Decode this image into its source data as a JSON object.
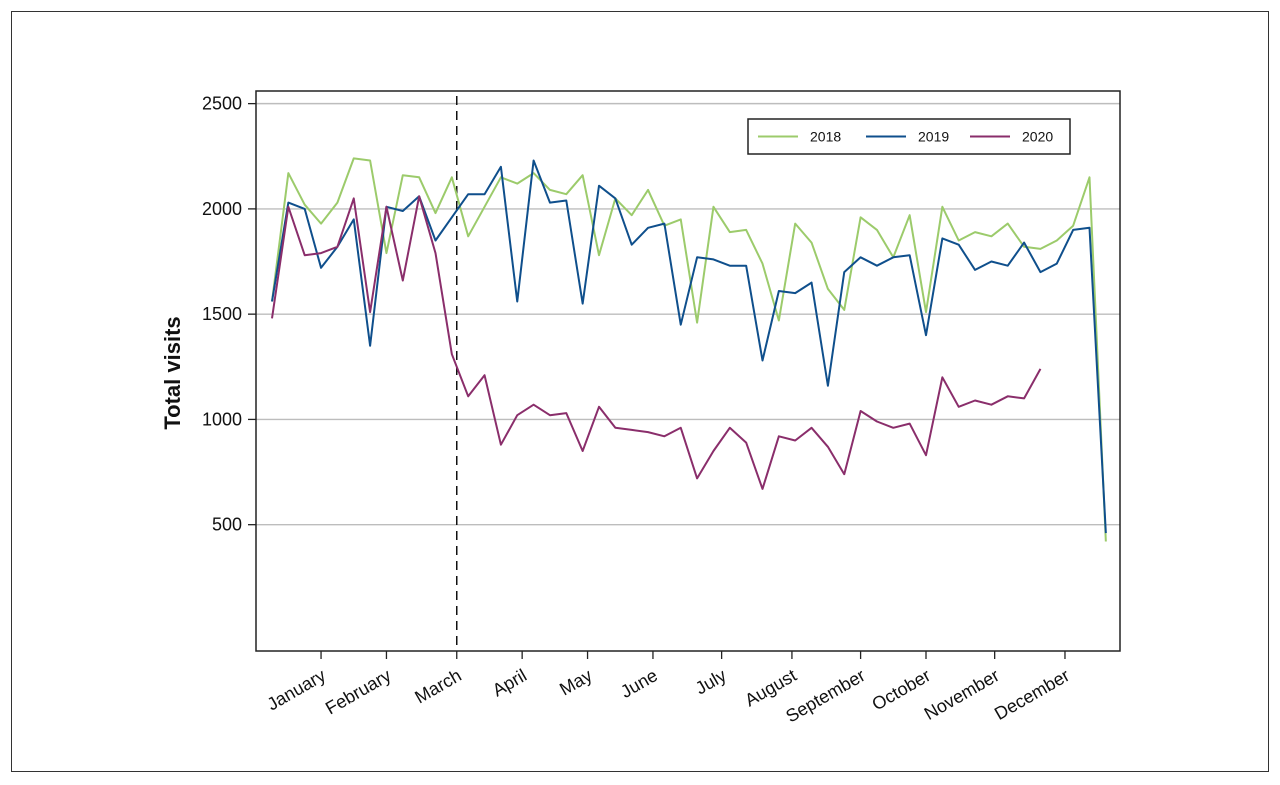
{
  "chart_data": {
    "type": "line",
    "ylabel": "Total visits",
    "xlabel": "",
    "ylim": [
      -100,
      2560
    ],
    "yticks": [
      500,
      1000,
      1500,
      2000,
      2500
    ],
    "ytick_labels": [
      "500",
      "1000",
      "1500",
      "2000",
      "2500"
    ],
    "grid": "horizontal",
    "x_weeks": 52,
    "months": [
      {
        "label": "January",
        "week": 3
      },
      {
        "label": "February",
        "week": 7
      },
      {
        "label": "March",
        "week": 11.3
      },
      {
        "label": "April",
        "week": 15.3
      },
      {
        "label": "May",
        "week": 19.3
      },
      {
        "label": "June",
        "week": 23.3
      },
      {
        "label": "July",
        "week": 27.5
      },
      {
        "label": "August",
        "week": 31.8
      },
      {
        "label": "September",
        "week": 36
      },
      {
        "label": "October",
        "week": 40
      },
      {
        "label": "November",
        "week": 44.2
      },
      {
        "label": "December",
        "week": 48.5
      }
    ],
    "reference_line_week": 11.3,
    "legend_placement": "top-right",
    "series": [
      {
        "name": "2018",
        "color": "#9ccb6b",
        "values": [
          1560,
          2170,
          2020,
          1930,
          2030,
          2240,
          2230,
          1790,
          2160,
          2150,
          1980,
          2150,
          1870,
          2010,
          2150,
          2120,
          2170,
          2090,
          2070,
          2160,
          1780,
          2050,
          1970,
          2090,
          1920,
          1950,
          1460,
          2010,
          1890,
          1900,
          1740,
          1470,
          1930,
          1840,
          1620,
          1520,
          1960,
          1900,
          1770,
          1970,
          1510,
          2010,
          1850,
          1890,
          1870,
          1930,
          1820,
          1810,
          1850,
          1920,
          2150,
          420
        ]
      },
      {
        "name": "2019",
        "color": "#0f4f8c",
        "values": [
          1560,
          2030,
          2000,
          1720,
          1820,
          1950,
          1350,
          2010,
          1990,
          2060,
          1850,
          1960,
          2070,
          2070,
          2200,
          1560,
          2230,
          2030,
          2040,
          1550,
          2110,
          2050,
          1830,
          1910,
          1930,
          1450,
          1770,
          1760,
          1730,
          1730,
          1280,
          1610,
          1600,
          1650,
          1160,
          1700,
          1770,
          1730,
          1770,
          1780,
          1400,
          1860,
          1830,
          1710,
          1750,
          1730,
          1840,
          1700,
          1740,
          1900,
          1910,
          460
        ]
      },
      {
        "name": "2020",
        "color": "#8a2e6b",
        "values": [
          1480,
          2010,
          1780,
          1790,
          1820,
          2050,
          1510,
          2010,
          1660,
          2060,
          1790,
          1310,
          1110,
          1210,
          880,
          1020,
          1070,
          1020,
          1030,
          850,
          1060,
          960,
          950,
          940,
          920,
          960,
          720,
          850,
          960,
          890,
          670,
          920,
          900,
          960,
          870,
          740,
          1040,
          990,
          960,
          980,
          830,
          1200,
          1060,
          1090,
          1070,
          1110,
          1100,
          1240
        ]
      }
    ]
  }
}
